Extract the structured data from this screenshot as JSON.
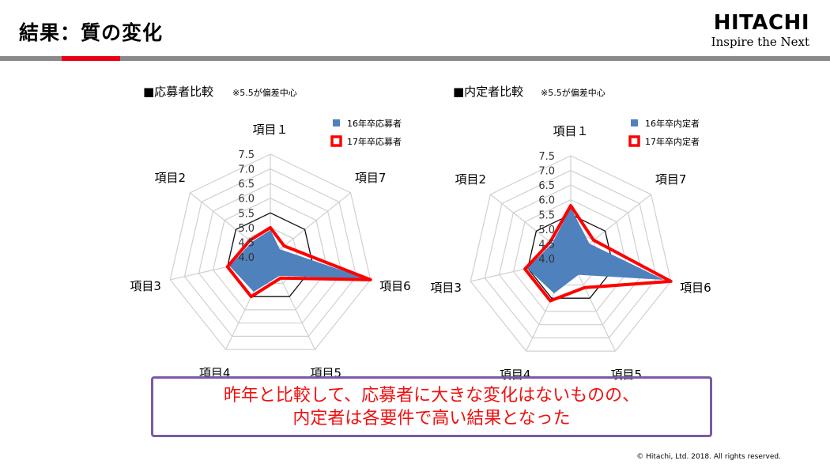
{
  "slide": {
    "title": "結果：質の変化",
    "logo_brand": "HITACHI",
    "logo_tagline": "Inspire the Next",
    "callout_line1": "昨年と比較して、応募者に大きな変化はないものの、",
    "callout_line2": "内定者は各要件で高い結果となった",
    "copyright": "© Hitachi, Ltd. 2018. All rights reserved.",
    "accent_red": "#e60012",
    "callout_border": "#7b5aa6"
  },
  "chart_data": [
    {
      "type": "radar",
      "title": "■応募者比較",
      "note": "※5.5が偏差中心",
      "categories": [
        "項目１",
        "項目7",
        "項目6",
        "項目5",
        "項目4",
        "項目3",
        "項目2"
      ],
      "ticks": [
        "7.5",
        "7.0",
        "6.5",
        "6.0",
        "5.5",
        "5.0",
        "4.5",
        "4.0"
      ],
      "rlim": [
        4.0,
        7.5
      ],
      "reference": 5.5,
      "series": [
        {
          "name": "16年卒応募者",
          "color": "#4f81bd",
          "style": "fill",
          "values": [
            4.9,
            4.4,
            7.3,
            4.7,
            5.3,
            5.4,
            4.8
          ]
        },
        {
          "name": "17年卒応募者",
          "color": "#ff0000",
          "style": "line",
          "values": [
            5.0,
            4.6,
            7.5,
            4.8,
            5.5,
            5.5,
            4.9
          ]
        }
      ]
    },
    {
      "type": "radar",
      "title": "■内定者比較",
      "note": "※5.5が偏差中心",
      "categories": [
        "項目１",
        "項目7",
        "項目6",
        "項目5",
        "項目4",
        "項目3",
        "項目2"
      ],
      "ticks": [
        "7.5",
        "7.0",
        "6.5",
        "6.0",
        "5.5",
        "5.0",
        "4.5",
        "4.0"
      ],
      "rlim": [
        4.0,
        7.5
      ],
      "reference": 5.5,
      "series": [
        {
          "name": "16年卒内定者",
          "color": "#4f81bd",
          "style": "fill",
          "values": [
            5.7,
            4.8,
            7.2,
            4.6,
            5.3,
            5.5,
            4.8
          ]
        },
        {
          "name": "17年卒内定者",
          "color": "#ff0000",
          "style": "line",
          "values": [
            5.8,
            5.0,
            7.5,
            5.1,
            5.6,
            5.6,
            4.9
          ]
        }
      ]
    }
  ]
}
